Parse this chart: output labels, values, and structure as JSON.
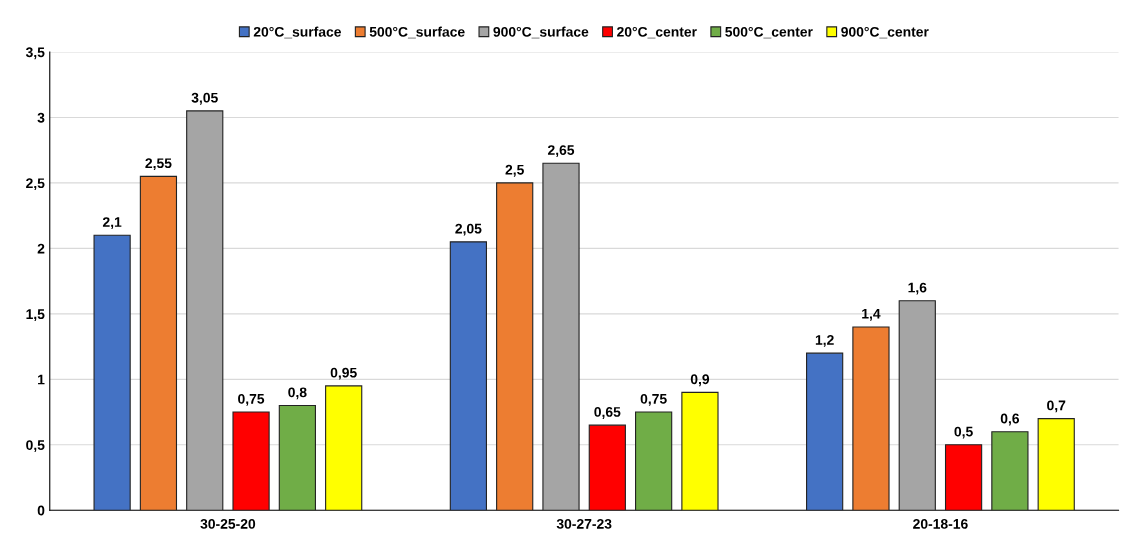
{
  "chart_data": {
    "type": "bar",
    "categories": [
      "30-25-20",
      "30-27-23",
      "20-18-16"
    ],
    "series": [
      {
        "name": "20°C_surface",
        "color": "#4472c4",
        "values": [
          2.1,
          2.05,
          1.2
        ],
        "value_labels": [
          "2,1",
          "2,05",
          "1,2"
        ]
      },
      {
        "name": "500°C_surface",
        "color": "#ed7d31",
        "values": [
          2.55,
          2.5,
          1.4
        ],
        "value_labels": [
          "2,55",
          "2,5",
          "1,4"
        ]
      },
      {
        "name": "900°C_surface",
        "color": "#a5a5a5",
        "values": [
          3.05,
          2.65,
          1.6
        ],
        "value_labels": [
          "3,05",
          "2,65",
          "1,6"
        ]
      },
      {
        "name": "20°C_center",
        "color": "#ff0000",
        "values": [
          0.75,
          0.65,
          0.5
        ],
        "value_labels": [
          "0,75",
          "0,65",
          "0,5"
        ]
      },
      {
        "name": "500°C_center",
        "color": "#70ad47",
        "values": [
          0.8,
          0.75,
          0.6
        ],
        "value_labels": [
          "0,8",
          "0,75",
          "0,6"
        ]
      },
      {
        "name": "900°C_center",
        "color": "#ffff00",
        "values": [
          0.95,
          0.9,
          0.7
        ],
        "value_labels": [
          "0,95",
          "0,9",
          "0,7"
        ]
      }
    ],
    "ylim": [
      0,
      3.5
    ],
    "yticks": [
      0,
      {
        "value": 0.5,
        "label": "0,5"
      },
      1,
      {
        "value": 1.5,
        "label": "1,5"
      },
      2,
      {
        "value": 2.5,
        "label": "2,5"
      },
      3,
      {
        "value": 3.5,
        "label": "3,5"
      }
    ],
    "grid": "y",
    "legend": "top"
  }
}
